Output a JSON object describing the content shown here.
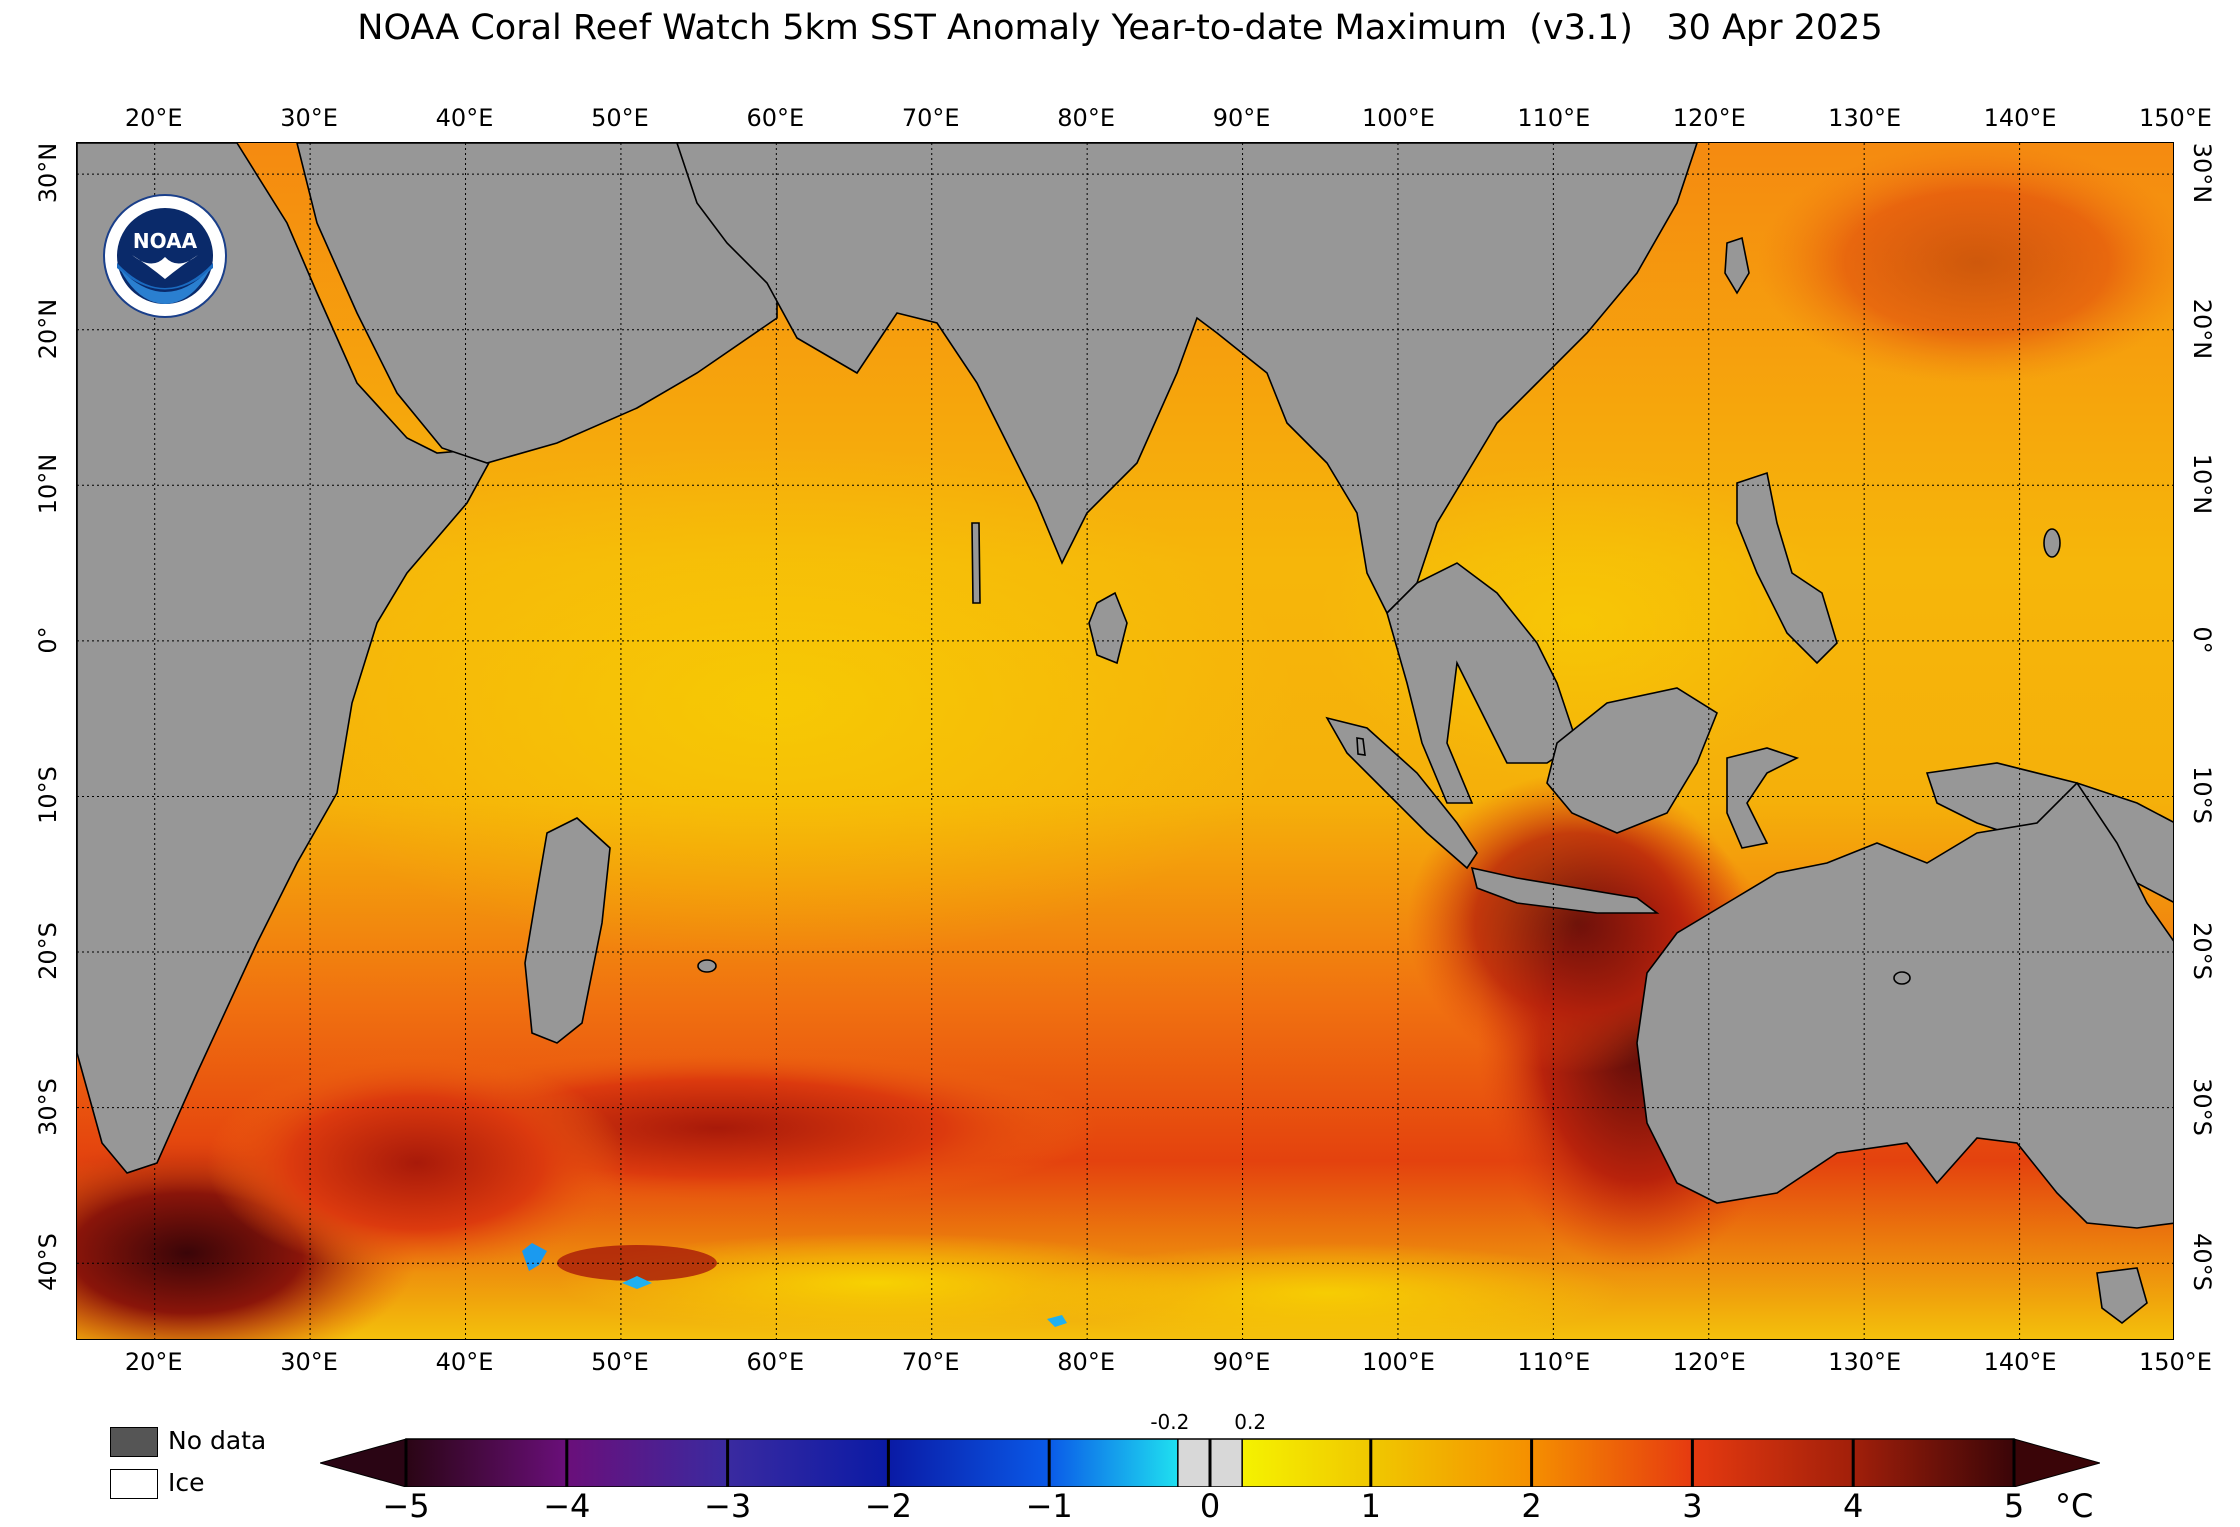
{
  "title": "NOAA Coral Reef Watch 5km SST Anomaly Year-to-date Maximum  (v3.1)   30 Apr 2025",
  "logo": {
    "text": "NOAA",
    "icon": "noaa-seagull-logo"
  },
  "lon_labels": [
    "20°E",
    "30°E",
    "40°E",
    "50°E",
    "60°E",
    "70°E",
    "80°E",
    "90°E",
    "100°E",
    "110°E",
    "120°E",
    "130°E",
    "140°E",
    "150°E"
  ],
  "lon_values": [
    20,
    30,
    40,
    50,
    60,
    70,
    80,
    90,
    100,
    110,
    120,
    130,
    140,
    150
  ],
  "lat_labels": [
    "30°N",
    "20°N",
    "10°N",
    "0°",
    "10°S",
    "20°S",
    "30°S",
    "40°S"
  ],
  "lat_values": [
    30,
    20,
    10,
    0,
    -10,
    -20,
    -30,
    -40
  ],
  "extent": {
    "lon": [
      15,
      150
    ],
    "lat": [
      -45,
      32
    ]
  },
  "legend": {
    "no_data": "No data",
    "ice": "Ice"
  },
  "colorbar": {
    "ticks": [
      "−5",
      "−4",
      "−3",
      "−2",
      "−1",
      "0",
      "1",
      "2",
      "3",
      "4",
      "5"
    ],
    "small_ticks": [
      "-0.2",
      "0.2"
    ],
    "unit": "°C",
    "colors": {
      "no_data": "#555555",
      "land": "#979797",
      "minus5": "#2a0514",
      "minus4": "#6a0f7a",
      "minus3": "#3a2aa0",
      "minus2": "#0a1aa5",
      "minus1": "#0a5ae8",
      "minus02": "#1fe0f0",
      "zero": "#d8d8d8",
      "plus02": "#f5f200",
      "plus1": "#f0c800",
      "plus2": "#f58f00",
      "plus3": "#e63a10",
      "plus4": "#a11f0a",
      "plus5": "#3a0508"
    }
  }
}
